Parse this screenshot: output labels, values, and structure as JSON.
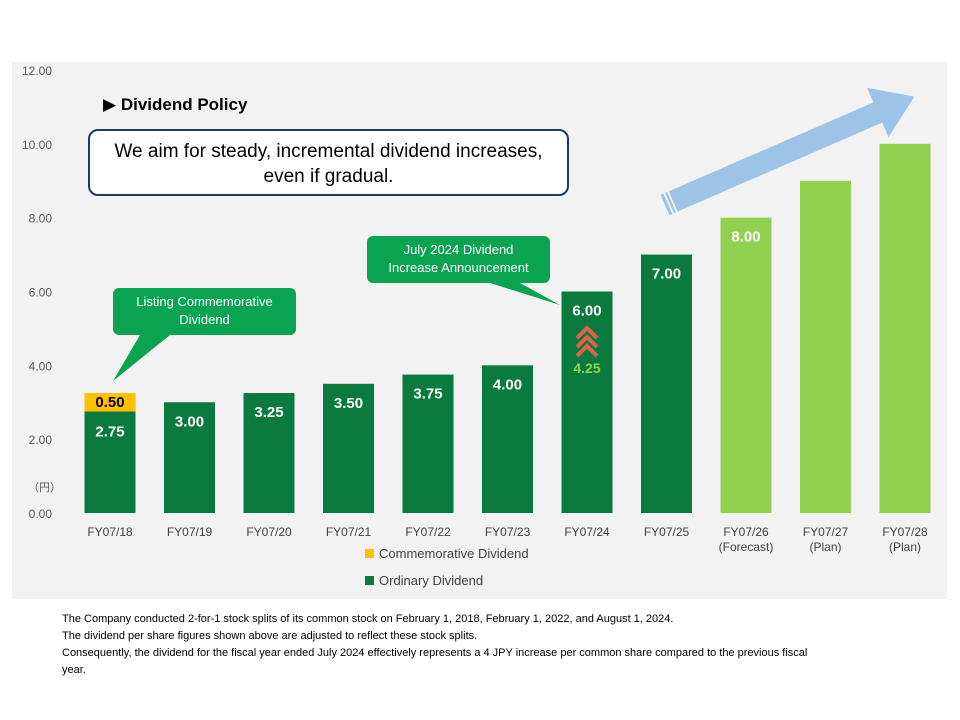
{
  "chart_data": {
    "type": "bar",
    "stacked": true,
    "categories": [
      "FY07/18",
      "FY07/19",
      "FY07/20",
      "FY07/21",
      "FY07/22",
      "FY07/23",
      "FY07/24",
      "FY07/25",
      "FY07/26\n(Forecast)",
      "FY07/27\n(Plan)",
      "FY07/28\n(Plan)"
    ],
    "series": [
      {
        "name": "Ordinary Dividend",
        "values": [
          2.75,
          3.0,
          3.25,
          3.5,
          3.75,
          4.0,
          6.0,
          7.0,
          8.0,
          9.0,
          10.0
        ],
        "labels": [
          "2.75",
          "3.00",
          "3.25",
          "3.50",
          "3.75",
          "4.00",
          "6.00",
          "7.00",
          "8.00",
          "",
          ""
        ]
      },
      {
        "name": "Commemorative Dividend",
        "values": [
          0.5,
          0,
          0,
          0,
          0,
          0,
          0,
          0,
          0,
          0,
          0
        ],
        "labels": [
          "0.50",
          "",
          "",
          "",
          "",
          "",
          "",
          "",
          "",
          "",
          ""
        ]
      }
    ],
    "ylim": [
      0,
      12
    ],
    "yticks": [
      "0.00",
      "2.00",
      "4.00",
      "6.00",
      "8.00",
      "10.00",
      "12.00"
    ],
    "yunit": "（円）",
    "legend_position": "bottom-left",
    "grid": false,
    "annotation_value": "4.25"
  },
  "colors": {
    "ordinary": "#0b7a3e",
    "projected": "#92d050",
    "commemorative": "#ffc000",
    "callout": "#0aa451",
    "arrow": "#9dc3e6",
    "up_arrow": "#e0614a",
    "annotation_text": "#92d050"
  },
  "policy": {
    "title": "Dividend Policy",
    "line1": "We aim for steady, incremental dividend increases,",
    "line2": "even if gradual."
  },
  "callouts": {
    "listing_line1": "Listing Commemorative",
    "listing_line2": "Dividend",
    "july_line1": "July 2024 Dividend",
    "july_line2": "Increase Announcement"
  },
  "notes": [
    "The Company conducted 2-for-1 stock splits of its common stock on February 1, 2018, February 1, 2022, and August 1, 2024.",
    "The dividend per share figures shown above are adjusted to reflect these stock splits.",
    "Consequently, the dividend for the fiscal year ended July 2024 effectively represents a 4 JPY increase per common share compared to the previous fiscal",
    "year."
  ]
}
